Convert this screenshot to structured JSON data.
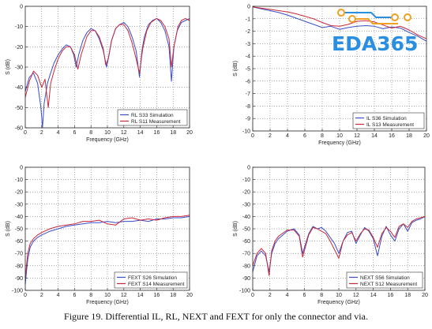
{
  "caption": "Figure 19. Differential IL, RL, NEXT and FEXT for only the connector and via.",
  "watermark": {
    "text": "EDA365",
    "color": "#2a8fe0",
    "accent": "#f0a020"
  },
  "colors": {
    "simulation": "#3a4ec8",
    "measurement": "#c8283a"
  },
  "chart_data": [
    {
      "type": "line",
      "xlabel": "Frequency (GHz)",
      "ylabel": "S (dB)",
      "xlim": [
        0,
        20
      ],
      "ylim": [
        -60,
        0
      ],
      "xticks": [
        0,
        2,
        4,
        6,
        8,
        10,
        12,
        14,
        16,
        18,
        20
      ],
      "yticks": [
        0,
        -10,
        -20,
        -30,
        -40,
        -50,
        -60
      ],
      "grid": true,
      "legend": "bottom-right",
      "series": [
        {
          "name": "RL S33 Simulation",
          "color": "#3a4ec8",
          "x": [
            0,
            0.5,
            1,
            1.5,
            1.9,
            2.1,
            2.3,
            2.7,
            3,
            3.5,
            4,
            4.5,
            5,
            5.5,
            5.9,
            6.2,
            6.5,
            7,
            7.5,
            8,
            8.5,
            9,
            9.5,
            9.9,
            10.2,
            10.5,
            11,
            11.5,
            12,
            12.5,
            13,
            13.5,
            13.9,
            14.2,
            14.5,
            15,
            15.5,
            16,
            16.5,
            17,
            17.5,
            17.8,
            18.1,
            18.5,
            19,
            19.5,
            20
          ],
          "y": [
            -42,
            -35,
            -33,
            -38,
            -50,
            -60,
            -48,
            -38,
            -34,
            -28,
            -24,
            -21,
            -19,
            -20,
            -24,
            -30,
            -24,
            -17,
            -13,
            -11,
            -12,
            -16,
            -22,
            -30,
            -24,
            -17,
            -11,
            -9,
            -8,
            -10,
            -15,
            -22,
            -35,
            -22,
            -15,
            -9,
            -7,
            -6,
            -8,
            -12,
            -20,
            -37,
            -20,
            -12,
            -8,
            -7,
            -6
          ]
        },
        {
          "name": "RL S11 Measurement",
          "color": "#c8283a",
          "x": [
            0,
            0.5,
            1,
            1.5,
            2,
            2.4,
            2.8,
            3.1,
            3.5,
            4,
            4.5,
            5,
            5.5,
            6,
            6.4,
            6.8,
            7.5,
            8,
            8.5,
            9,
            9.5,
            9.8,
            10.1,
            10.5,
            11,
            11.5,
            12,
            12.5,
            13,
            13.5,
            13.9,
            14.3,
            14.8,
            15.3,
            16,
            16.5,
            17,
            17.5,
            17.8,
            18.1,
            18.6,
            19,
            19.5,
            20
          ],
          "y": [
            -45,
            -37,
            -32,
            -34,
            -40,
            -36,
            -50,
            -38,
            -32,
            -26,
            -22,
            -20,
            -20,
            -24,
            -31,
            -24,
            -15,
            -12,
            -12,
            -15,
            -21,
            -29,
            -26,
            -17,
            -11,
            -9,
            -9,
            -12,
            -18,
            -26,
            -33,
            -21,
            -12,
            -8,
            -6,
            -7,
            -10,
            -16,
            -30,
            -20,
            -10,
            -7,
            -6,
            -7
          ]
        }
      ]
    },
    {
      "type": "line",
      "xlabel": "Frequency (GHz)",
      "ylabel": "S (dB)",
      "xlim": [
        0,
        20
      ],
      "ylim": [
        -10,
        0
      ],
      "xticks": [
        0,
        2,
        4,
        6,
        8,
        10,
        12,
        14,
        16,
        18,
        20
      ],
      "yticks": [
        0,
        -1,
        -2,
        -3,
        -4,
        -5,
        -6,
        -7,
        -8,
        -9,
        -10
      ],
      "grid": true,
      "legend": "bottom-right",
      "series": [
        {
          "name": "IL S36 Simulation",
          "color": "#3a4ec8",
          "x": [
            0,
            1,
            2,
            3,
            4,
            5,
            6,
            7,
            8,
            9,
            10,
            11,
            12,
            13,
            14,
            15,
            16,
            17,
            18,
            19,
            20
          ],
          "y": [
            -0.05,
            -0.2,
            -0.35,
            -0.5,
            -0.7,
            -0.95,
            -1.2,
            -1.45,
            -1.7,
            -1.6,
            -1.85,
            -1.7,
            -1.6,
            -1.55,
            -1.6,
            -1.8,
            -1.65,
            -1.75,
            -2.1,
            -2.4,
            -2.8
          ]
        },
        {
          "name": "IL S13 Measurement",
          "color": "#c8283a",
          "x": [
            0,
            1,
            2,
            3,
            4,
            5,
            6,
            7,
            8,
            9,
            10,
            11,
            12,
            13,
            14,
            15,
            16,
            17,
            18,
            19,
            20
          ],
          "y": [
            -0.05,
            -0.15,
            -0.25,
            -0.35,
            -0.45,
            -0.6,
            -0.8,
            -1.0,
            -1.3,
            -1.55,
            -1.6,
            -1.45,
            -1.2,
            -1.15,
            -1.25,
            -1.5,
            -1.75,
            -1.6,
            -1.9,
            -2.3,
            -2.6
          ]
        }
      ]
    },
    {
      "type": "line",
      "xlabel": "Frequency (GHz)",
      "ylabel": "S (dB)",
      "xlim": [
        0,
        20
      ],
      "ylim": [
        -100,
        0
      ],
      "xticks": [
        0,
        2,
        4,
        6,
        8,
        10,
        12,
        14,
        16,
        18,
        20
      ],
      "yticks": [
        0,
        -10,
        -20,
        -30,
        -40,
        -50,
        -60,
        -70,
        -80,
        -90,
        -100
      ],
      "grid": true,
      "legend": "bottom-right",
      "series": [
        {
          "name": "FEXT S26 Simulation",
          "color": "#3a4ec8",
          "x": [
            0,
            0.3,
            0.6,
            1,
            1.5,
            2,
            3,
            4,
            5,
            6,
            7,
            8,
            9,
            10,
            11,
            12,
            13,
            14,
            15,
            16,
            17,
            18,
            19,
            20
          ],
          "y": [
            -95,
            -75,
            -65,
            -60,
            -57,
            -55,
            -52,
            -50,
            -48,
            -47,
            -46,
            -45,
            -45,
            -44,
            -45,
            -44,
            -44,
            -43,
            -44,
            -42,
            -42,
            -41,
            -41,
            -40
          ]
        },
        {
          "name": "FEXT S14 Measurement",
          "color": "#c8283a",
          "x": [
            0,
            0.3,
            0.6,
            1,
            1.5,
            2,
            3,
            4,
            5,
            6,
            7,
            8,
            9,
            10,
            11,
            12,
            13,
            14,
            15,
            16,
            17,
            18,
            19,
            20
          ],
          "y": [
            -90,
            -70,
            -62,
            -58,
            -55,
            -53,
            -50,
            -48,
            -47,
            -46,
            -44,
            -44,
            -43,
            -46,
            -47,
            -42,
            -41,
            -43,
            -42,
            -43,
            -41,
            -40,
            -40,
            -39
          ]
        }
      ]
    },
    {
      "type": "line",
      "xlabel": "Frequency (GHz)",
      "ylabel": "S (dB)",
      "xlim": [
        0,
        20
      ],
      "ylim": [
        -100,
        0
      ],
      "xticks": [
        0,
        2,
        4,
        6,
        8,
        10,
        12,
        14,
        16,
        18,
        20
      ],
      "yticks": [
        0,
        -10,
        -20,
        -30,
        -40,
        -50,
        -60,
        -70,
        -80,
        -90,
        -100
      ],
      "grid": true,
      "legend": "bottom-right",
      "series": [
        {
          "name": "NEXT S56 Simulation",
          "color": "#3a4ec8",
          "x": [
            0,
            0.5,
            1,
            1.5,
            1.9,
            2.2,
            2.6,
            3,
            4,
            4.8,
            5.4,
            5.8,
            6.5,
            7,
            7.5,
            8,
            8.5,
            9,
            9.5,
            10,
            10.5,
            11,
            11.5,
            12,
            12.5,
            13,
            13.5,
            14,
            14.5,
            15,
            15.5,
            16,
            16.5,
            17,
            17.5,
            18,
            18.5,
            19,
            19.5,
            20
          ],
          "y": [
            -85,
            -72,
            -68,
            -72,
            -85,
            -70,
            -62,
            -58,
            -52,
            -50,
            -55,
            -70,
            -54,
            -48,
            -50,
            -49,
            -52,
            -57,
            -62,
            -70,
            -60,
            -53,
            -52,
            -62,
            -55,
            -49,
            -52,
            -58,
            -72,
            -56,
            -48,
            -55,
            -60,
            -50,
            -46,
            -52,
            -45,
            -43,
            -42,
            -40
          ]
        },
        {
          "name": "NEXT S12 Measurement",
          "color": "#c8283a",
          "x": [
            0,
            0.5,
            1,
            1.5,
            1.9,
            2.2,
            2.6,
            3,
            4,
            4.8,
            5.4,
            5.8,
            6.5,
            7,
            7.5,
            8,
            8.5,
            9,
            9.5,
            10,
            10.5,
            11,
            11.5,
            12,
            12.5,
            13,
            13.5,
            14,
            14.5,
            15,
            15.5,
            16,
            16.5,
            17,
            17.5,
            18,
            18.5,
            19,
            19.5,
            20
          ],
          "y": [
            -80,
            -70,
            -66,
            -70,
            -88,
            -68,
            -60,
            -56,
            -51,
            -51,
            -56,
            -73,
            -55,
            -49,
            -50,
            -52,
            -54,
            -60,
            -67,
            -74,
            -60,
            -55,
            -53,
            -60,
            -54,
            -50,
            -51,
            -57,
            -65,
            -54,
            -49,
            -52,
            -57,
            -48,
            -46,
            -49,
            -44,
            -42,
            -41,
            -40
          ]
        }
      ]
    }
  ]
}
